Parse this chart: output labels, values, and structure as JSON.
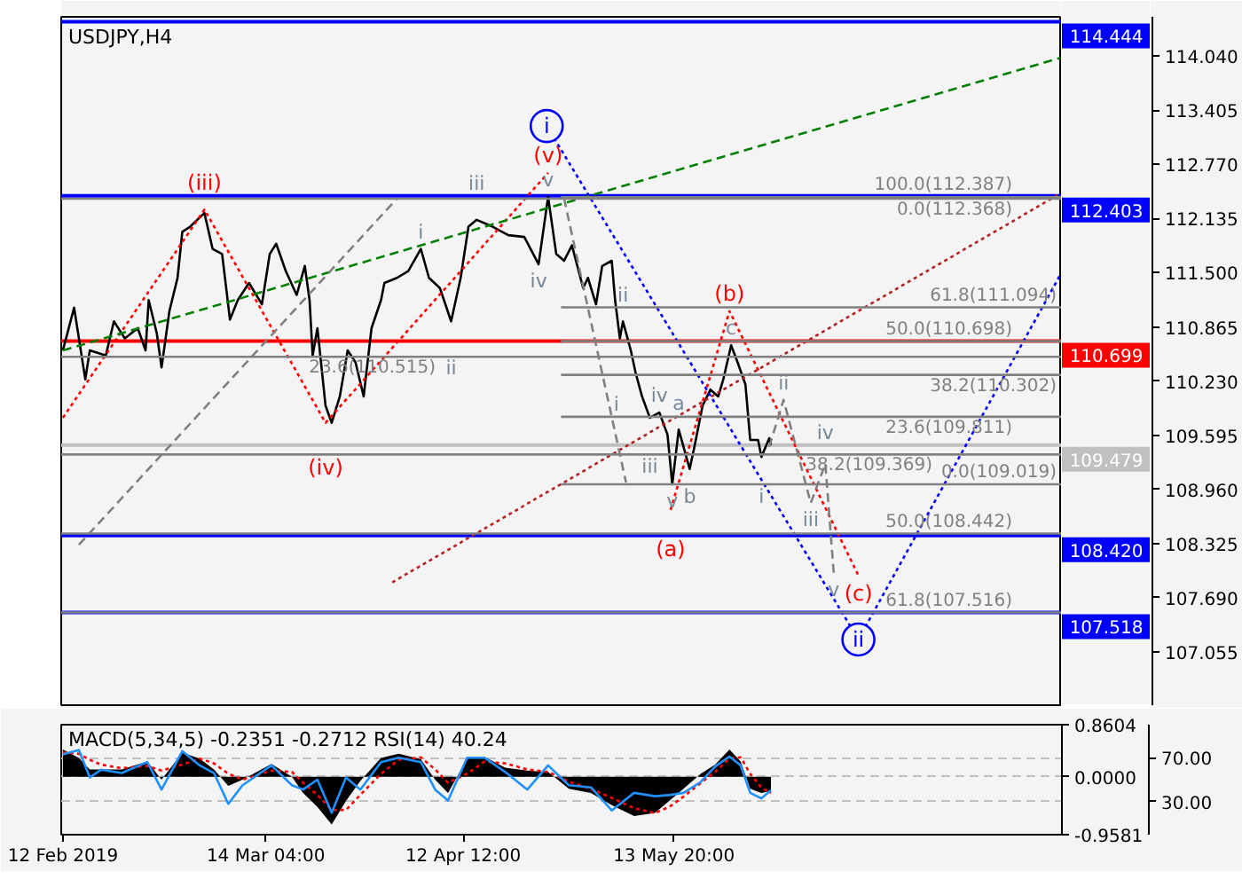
{
  "chart_data": [
    {
      "type": "line",
      "title": "USDJPY,H4",
      "xlim": [
        "2019-02-11T18:00",
        "2019-07-10T12:00"
      ],
      "ylim": [
        106.43,
        114.5
      ],
      "yticks": [
        {
          "value": 114.04,
          "label": "114.040"
        },
        113.405,
        {
          "value": 112.77,
          "label": "112.770"
        },
        112.135,
        {
          "value": 111.5,
          "label": "111.500"
        },
        110.865,
        {
          "value": 110.23,
          "label": "110.230"
        },
        109.595,
        {
          "value": 108.96,
          "label": "108.960"
        },
        108.325,
        {
          "value": 107.69,
          "label": "107.690"
        },
        107.055
      ],
      "tick_labels": "y",
      "series": [
        {
          "color": "#000000",
          "x": [
            "2019-02-12T00:00",
            "2019-02-13T16:00",
            "2019-02-15T08:00",
            "2019-02-16T00:00",
            "2019-02-18T09:00",
            "2019-02-19T14:00",
            "2019-02-21T05:00",
            "2019-02-23T03:00",
            "2019-02-24T07:00",
            "2019-02-24T18:00",
            "2019-02-25T23:00",
            "2019-02-26T16:00",
            "2019-02-27T20:00",
            "2019-03-01T01:00",
            "2019-03-01T18:00",
            "2019-03-02T22:00",
            "2019-03-05T01:00",
            "2019-03-06T06:00",
            "2019-03-07T16:00",
            "2019-03-08T20:00",
            "2019-03-10T00:00",
            "2019-03-11T16:00",
            "2019-03-13T14:00",
            "2019-03-14T18:00",
            "2019-03-15T17:00",
            "2019-03-17T03:00",
            "2019-03-18T18:00",
            "2019-03-19T23:00",
            "2019-03-20T16:00",
            "2019-03-21T03:00",
            "2019-03-21T20:00",
            "2019-03-23T01:00",
            "2019-03-23T23:00",
            "2019-03-25T04:00",
            "2019-03-26T08:00",
            "2019-03-27T12:00",
            "2019-03-28T17:00",
            "2019-03-29T21:00",
            "2019-03-31T07:00",
            "2019-03-31T19:00",
            "2019-04-02T16:00",
            "2019-04-04T08:00",
            "2019-04-06T05:00",
            "2019-04-07T10:00",
            "2019-04-09T01:00",
            "2019-04-10T17:00",
            "2019-04-12T03:00",
            "2019-04-13T07:00",
            "2019-04-14T12:00",
            "2019-04-16T21:00",
            "2019-04-19T05:00",
            "2019-04-21T14:00",
            "2019-04-23T17:00",
            "2019-04-25T03:00",
            "2019-04-26T08:00",
            "2019-04-27T12:00",
            "2019-04-28T16:00",
            "2019-04-30T08:00",
            "2019-05-01T01:00",
            "2019-05-02T06:00",
            "2019-05-03T04:00",
            "2019-05-04T14:00",
            "2019-05-05T02:00",
            "2019-05-05T19:00",
            "2019-05-06T06:00",
            "2019-05-07T10:00",
            "2019-05-08T03:00",
            "2019-05-09T02:00",
            "2019-05-10T06:00",
            "2019-05-11T16:00",
            "2019-05-12T21:00",
            "2019-05-13T14:00",
            "2019-05-14T13:00",
            "2019-05-16T04:00",
            "2019-05-16T21:00",
            "2019-05-18T02:00",
            "2019-05-19T06:00",
            "2019-05-20T10:00",
            "2019-05-21T04:00",
            "2019-05-22T08:00",
            "2019-05-23T07:00",
            "2019-05-24T11:00",
            "2019-05-25T04:00",
            "2019-05-26T08:00",
            "2019-05-26T20:00",
            "2019-05-28T00:00",
            "2019-05-28T06:00"
          ],
          "values": [
            110.59,
            111.09,
            110.25,
            110.59,
            110.53,
            110.93,
            110.73,
            110.85,
            110.59,
            111.18,
            110.79,
            110.39,
            111.05,
            111.44,
            111.98,
            112.04,
            112.2,
            111.78,
            111.72,
            110.95,
            111.18,
            111.38,
            111.13,
            111.72,
            111.84,
            111.52,
            111.24,
            111.58,
            111.18,
            110.53,
            110.85,
            109.94,
            109.74,
            110.05,
            110.59,
            110.45,
            110.05,
            110.85,
            111.18,
            111.38,
            111.44,
            111.52,
            111.78,
            111.44,
            111.32,
            110.93,
            111.44,
            112.04,
            112.12,
            112.04,
            111.94,
            111.92,
            111.6,
            112.39,
            111.72,
            111.64,
            111.82,
            111.32,
            111.44,
            111.13,
            111.58,
            111.64,
            111.18,
            110.73,
            110.93,
            110.59,
            110.33,
            110.05,
            109.8,
            109.86,
            109.6,
            109.02,
            109.66,
            109.2,
            109.46,
            109.94,
            110.13,
            110.05,
            110.25,
            110.65,
            110.45,
            110.19,
            109.54,
            109.54,
            109.34,
            109.56,
            109.48
          ]
        },
        {
          "color": "#ff0000",
          "line_style": "dotted",
          "x": [
            "2019-02-12T00:00",
            "2019-03-05T01:00",
            "2019-03-23T01:00",
            "2019-04-25T03:00"
          ],
          "values": [
            109.8,
            112.24,
            109.74,
            112.67
          ],
          "value_labels": [
            null,
            "(iii)",
            "(iv)",
            "(v)"
          ]
        },
        {
          "color": "#ff0000",
          "line_style": "dotted",
          "x": [
            "2019-05-13T08:00",
            "2019-05-22T02:00",
            "2019-06-10T06:00"
          ],
          "values": [
            108.72,
            111.05,
            107.95
          ],
          "value_labels": [
            "(a)",
            "(b)",
            "(c)"
          ]
        },
        {
          "color": "#0000ff",
          "line_style": "dotted",
          "x": [
            "2019-06-10T06:00",
            "2019-07-10T07:00"
          ],
          "values": [
            107.2,
            111.48
          ]
        },
        {
          "color": "#0000ff",
          "line_style": "dotted",
          "marker": "circle",
          "x": [
            "2019-04-24T22:00",
            "2019-06-10T06:00"
          ],
          "values": [
            113.22,
            107.2
          ],
          "value_labels": [
            "i",
            "ii"
          ]
        },
        {
          "color": "#008000",
          "line_style": "dashed",
          "x": [
            "2019-02-12T00:00",
            "2019-07-10T07:00"
          ],
          "values": [
            110.59,
            114.02
          ]
        },
        {
          "color": "#b22222",
          "line_style": "dotted",
          "x": [
            "2019-04-01T23:00",
            "2019-07-10T07:00"
          ],
          "values": [
            107.87,
            112.43
          ]
        },
        {
          "color": "#808080",
          "line_style": "dashed",
          "x": [
            "2019-02-14T09:00",
            "2019-04-02T16:00"
          ],
          "values": [
            108.31,
            112.37
          ]
        },
        {
          "color": "#808080",
          "line_style": "dashed",
          "x": [
            "2019-04-27T12:00",
            "2019-05-06T17:00"
          ],
          "values": [
            112.37,
            109.04
          ]
        },
        {
          "color": "#808080",
          "line_style": "dashed",
          "x": [
            "2019-05-28T00:00",
            "2019-05-30T03:00",
            "2019-06-03T04:00",
            "2019-06-05T08:00",
            "2019-06-06T14:00"
          ],
          "values": [
            109.46,
            110.01,
            108.8,
            109.26,
            107.98
          ]
        },
        {
          "name": "100.0(112.387)",
          "color": "#808080",
          "x": [
            "2019-04-27T01:00",
            "2019-07-10T12:00"
          ],
          "values": [
            112.387,
            112.387
          ]
        },
        {
          "name": "61.8(111.094)",
          "color": "#808080",
          "x": [
            "2019-04-27T01:00",
            "2019-07-10T12:00"
          ],
          "values": [
            111.094,
            111.094
          ]
        },
        {
          "name": "50.0(110.698)",
          "color": "#808080",
          "x": [
            "2019-04-27T01:00",
            "2019-07-10T12:00"
          ],
          "values": [
            110.698,
            110.698
          ]
        },
        {
          "name": "38.2(110.302)",
          "color": "#808080",
          "x": [
            "2019-04-27T01:00",
            "2019-07-10T12:00"
          ],
          "values": [
            110.302,
            110.302
          ]
        },
        {
          "name": "23.6(109.811)",
          "color": "#808080",
          "x": [
            "2019-04-27T01:00",
            "2019-07-10T12:00"
          ],
          "values": [
            109.811,
            109.811
          ]
        },
        {
          "name": "0.0(109.019)",
          "color": "#808080",
          "x": [
            "2019-04-27T01:00",
            "2019-07-10T12:00"
          ],
          "values": [
            109.019,
            109.019
          ]
        },
        {
          "name": "0.0(112.368)",
          "color": "#808080",
          "x": [
            "2019-02-11T18:00",
            "2019-07-10T12:00"
          ],
          "values": [
            112.368,
            112.368
          ]
        },
        {
          "name": "23.6(110.515)",
          "color": "#808080",
          "x": [
            "2019-02-11T18:00",
            "2019-07-10T12:00"
          ],
          "values": [
            110.515,
            110.515
          ]
        },
        {
          "name": "38.2(109.369)",
          "color": "#808080",
          "x": [
            "2019-02-11T18:00",
            "2019-07-10T12:00"
          ],
          "values": [
            109.369,
            109.369
          ]
        },
        {
          "name": "50.0(108.442)",
          "color": "#808080",
          "x": [
            "2019-02-11T18:00",
            "2019-07-10T12:00"
          ],
          "values": [
            108.442,
            108.442
          ]
        },
        {
          "name": "61.8(107.516)",
          "color": "#808080",
          "x": [
            "2019-02-11T18:00",
            "2019-07-10T12:00"
          ],
          "values": [
            107.516,
            107.516
          ]
        }
      ],
      "ref_lines": [
        {
          "axis": "y",
          "value": 114.444,
          "label": "114.444",
          "color": "#0000ff"
        },
        {
          "axis": "y",
          "value": 112.403,
          "label": "112.403",
          "color": "#0000ff"
        },
        {
          "axis": "y",
          "value": 110.699,
          "label": "110.699",
          "color": "#ff0000"
        },
        {
          "axis": "y",
          "value": 109.479,
          "label": "109.479",
          "color": "#c0c0c0"
        },
        {
          "axis": "y",
          "value": 108.42,
          "label": "108.420",
          "color": "#0000ff"
        },
        {
          "axis": "y",
          "value": 107.518,
          "label": "107.518",
          "color": "#0000ff"
        }
      ],
      "annotations": [
        {
          "text": "i",
          "x": "2019-04-06T05:00",
          "y": 111.78
        },
        {
          "text": "ii",
          "x": "2019-04-10T17:00",
          "y": 110.93
        },
        {
          "text": "iii",
          "x": "2019-04-14T12:00",
          "y": 112.12
        },
        {
          "text": "iv",
          "x": "2019-04-23T17:00",
          "y": 111.6
        },
        {
          "text": "v",
          "x": "2019-04-25T03:00",
          "y": 112.39
        },
        {
          "text": "i",
          "x": "2019-05-05T07:00",
          "y": 109.96
        },
        {
          "text": "ii",
          "x": "2019-05-06T06:00",
          "y": 110.93
        },
        {
          "text": "iii",
          "x": "2019-05-10T06:00",
          "y": 109.8
        },
        {
          "text": "iv",
          "x": "2019-05-11T16:00",
          "y": 109.86
        },
        {
          "text": "v",
          "x": "2019-05-13T14:00",
          "y": 109.02
        },
        {
          "text": "a",
          "x": "2019-05-14T13:00",
          "y": 109.66
        },
        {
          "text": "b",
          "x": "2019-05-16T04:00",
          "y": 109.2
        },
        {
          "text": "c",
          "x": "2019-05-22T08:00",
          "y": 110.65
        },
        {
          "text": "i",
          "x": "2019-05-26T20:00",
          "y": 109.34
        },
        {
          "text": "ii",
          "x": "2019-05-30T03:00",
          "y": 110.01
        },
        {
          "text": "iii",
          "x": "2019-06-03T04:00",
          "y": 108.8
        },
        {
          "text": "iv",
          "x": "2019-06-05T08:00",
          "y": 109.26
        },
        {
          "text": "v",
          "x": "2019-06-06T14:00",
          "y": 107.98
        }
      ]
    },
    {
      "type": "line",
      "title": "MACD(5,34,5) -0.2351 -0.2712 RSI(14) 40.24",
      "xlim": [
        "2019-02-11T18:00",
        "2019-07-10T12:00"
      ],
      "xticks": [
        {
          "value": "2019-02-12T00:00",
          "label": "12 Feb 2019"
        },
        {
          "value": "2019-03-14T04:00",
          "label": "14 Mar 04:00"
        },
        {
          "value": "2019-04-12T12:00",
          "label": "12 Apr 12:00"
        },
        {
          "value": "2019-05-13T20:00",
          "label": "13 May 20:00"
        }
      ],
      "ylim": [
        -0.9581,
        0.8604
      ],
      "yticks": [
        0.8604,
        {
          "value": 0,
          "label": "0.0000"
        },
        -0.9581
      ],
      "y2lim": [
        0,
        100
      ],
      "y2ticks": [
        {
          "value": 70,
          "label": "70.00"
        },
        {
          "value": 30,
          "label": "30.00"
        }
      ],
      "grid": "y",
      "x": [
        "2019-02-12T00:00",
        "2019-02-14T09:00",
        "2019-02-16T00:00",
        "2019-02-17T16:00",
        "2019-02-20T18:00",
        "2019-02-24T13:00",
        "2019-02-26T16:00",
        "2019-03-01T18:00",
        "2019-03-04T08:00",
        "2019-03-06T11:00",
        "2019-03-08T14:00",
        "2019-03-10T17:00",
        "2019-03-15T00:00",
        "2019-03-18T01:00",
        "2019-03-19T17:00",
        "2019-03-21T20:00",
        "2019-03-23T23:00",
        "2019-03-26T02:00",
        "2019-03-28T05:00",
        "2019-03-31T07:00",
        "2019-04-02T22:00",
        "2019-04-06T05:00",
        "2019-04-08T08:00",
        "2019-04-10T06:00",
        "2019-04-13T02:00",
        "2019-04-15T16:00",
        "2019-04-18T18:00",
        "2019-04-22T01:00",
        "2019-04-25T03:00",
        "2019-04-28T05:00",
        "2019-05-01T12:00",
        "2019-05-04T14:00",
        "2019-05-07T22:00",
        "2019-05-11T00:00",
        "2019-05-13T03:00",
        "2019-05-15T06:00",
        "2019-05-17T20:00",
        "2019-05-19T23:00",
        "2019-05-22T02:00",
        "2019-05-23T18:00",
        "2019-05-25T04:00",
        "2019-05-26T20:00",
        "2019-05-28T06:00"
      ],
      "series": [
        {
          "type": "area",
          "color": "#000000",
          "values": [
            0.45,
            0.31,
            0.12,
            0.12,
            0.12,
            0.25,
            -0.05,
            0.4,
            0.3,
            0.12,
            -0.15,
            -0.05,
            0.21,
            0.0,
            -0.27,
            -0.5,
            -0.79,
            -0.4,
            -0.07,
            0.31,
            0.38,
            0.29,
            -0.05,
            -0.27,
            0.3,
            0.33,
            0.15,
            0.1,
            0.08,
            -0.2,
            -0.27,
            -0.47,
            -0.65,
            -0.6,
            -0.4,
            -0.2,
            0.05,
            0.2,
            0.45,
            0.25,
            -0.2,
            -0.27,
            -0.2351
          ]
        },
        {
          "color": "#ff0000",
          "line_style": "dotted",
          "values": [
            0.4,
            0.38,
            0.28,
            0.2,
            0.14,
            0.18,
            0.1,
            0.2,
            0.3,
            0.22,
            0.05,
            -0.05,
            0.1,
            0.08,
            -0.1,
            -0.3,
            -0.55,
            -0.55,
            -0.3,
            0.05,
            0.28,
            0.32,
            0.12,
            -0.1,
            0.05,
            0.25,
            0.22,
            0.12,
            0.08,
            -0.08,
            -0.2,
            -0.35,
            -0.52,
            -0.6,
            -0.5,
            -0.33,
            -0.1,
            0.08,
            0.3,
            0.32,
            0.05,
            -0.18,
            -0.2712
          ]
        },
        {
          "color": "#1e90ff",
          "axis": "y2",
          "values": [
            73,
            77,
            52,
            59,
            56,
            66,
            41,
            76,
            63,
            56,
            28,
            45,
            63,
            45,
            41,
            50,
            20,
            52,
            41,
            66,
            70,
            66,
            41,
            31,
            70,
            70,
            57,
            41,
            63,
            45,
            43,
            22,
            38,
            35,
            36,
            38,
            48,
            62,
            71,
            63,
            38,
            33,
            40.24
          ]
        }
      ]
    }
  ]
}
